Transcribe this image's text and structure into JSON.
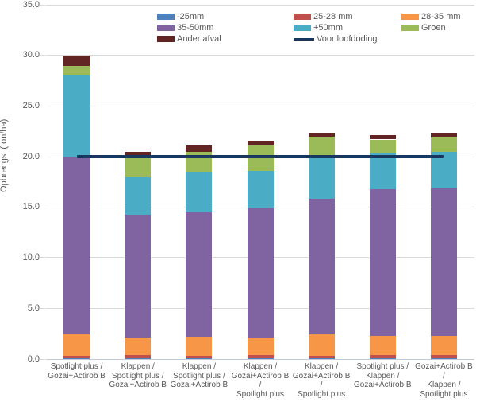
{
  "chart_data": {
    "type": "stacked-bar-with-line",
    "title": "",
    "xlabel": "",
    "ylabel": "Opbrengst (ton/ha)",
    "ylim": [
      0,
      35
    ],
    "ytick_step": 5,
    "ytick_labels": [
      "0.0",
      "5.0",
      "10.0",
      "15.0",
      "20.0",
      "25.0",
      "30.0",
      "35.0"
    ],
    "grid": true,
    "legend_position": "top",
    "categories": [
      "Spotlight plus / Gozai+Actirob B",
      "Klappen / Spotlight plus / Gozai+Actirob B",
      "Klappen / Spotlight plus / Gozai+Actirob B",
      "Klappen / Gozai+Actirob B / Spotlight plus",
      "Klappen / Gozai+Actirob B / Spotlight plus",
      "Spotlight plus / Klappen / Gozai+Actirob B",
      "Gozai+Actirob B / Klappen / Spotlight plus"
    ],
    "category_label_lines": [
      [
        "Spotlight plus /",
        "Gozai+Actirob B"
      ],
      [
        "Klappen /",
        "Spotlight plus /",
        "Gozai+Actirob B"
      ],
      [
        "Klappen /",
        "Spotlight plus /",
        "Gozai+Actirob B"
      ],
      [
        "Klappen /",
        "Gozai+Actirob B /",
        "Spotlight plus"
      ],
      [
        "Klappen /",
        "Gozai+Actirob B /",
        "Spotlight plus"
      ],
      [
        "Spotlight plus /",
        "Klappen /",
        "Gozai+Actirob B"
      ],
      [
        "Gozai+Actirob B /",
        "Klappen /",
        "Spotlight plus"
      ]
    ],
    "series": [
      {
        "name": "-25mm",
        "color": "#4f81bd",
        "values": [
          0.05,
          0.05,
          0.05,
          0.05,
          0.05,
          0.05,
          0.05
        ]
      },
      {
        "name": "25-28 mm",
        "color": "#c0504d",
        "values": [
          0.25,
          0.35,
          0.3,
          0.35,
          0.3,
          0.35,
          0.35
        ]
      },
      {
        "name": "28-35 mm",
        "color": "#f79646",
        "values": [
          2.1,
          1.75,
          1.85,
          1.7,
          2.1,
          1.9,
          1.9
        ]
      },
      {
        "name": "35-50mm",
        "color": "#8064a2",
        "values": [
          17.5,
          12.15,
          12.3,
          12.8,
          13.4,
          14.5,
          14.6
        ]
      },
      {
        "name": "+50mm",
        "color": "#4bacc6",
        "values": [
          8.1,
          3.7,
          4.0,
          3.7,
          4.3,
          3.5,
          3.6
        ]
      },
      {
        "name": "Groen",
        "color": "#9bbb59",
        "values": [
          0.95,
          2.0,
          2.0,
          2.5,
          1.8,
          1.4,
          1.4
        ]
      },
      {
        "name": "Ander afval",
        "color": "#632523",
        "values": [
          1.05,
          0.45,
          0.6,
          0.5,
          0.35,
          0.4,
          0.4
        ]
      }
    ],
    "line_series": {
      "name": "Voor loofdoding",
      "color": "#17375e",
      "value": 20.0,
      "values": [
        20.0,
        20.0,
        20.0,
        20.0,
        20.0,
        20.0,
        20.0
      ]
    },
    "totals": [
      30.0,
      20.5,
      21.1,
      21.6,
      22.3,
      22.1,
      22.3
    ],
    "colors": {
      "gridline": "#d9d9d9",
      "axis_line": "#c0c9d5",
      "text": "#595959"
    }
  }
}
